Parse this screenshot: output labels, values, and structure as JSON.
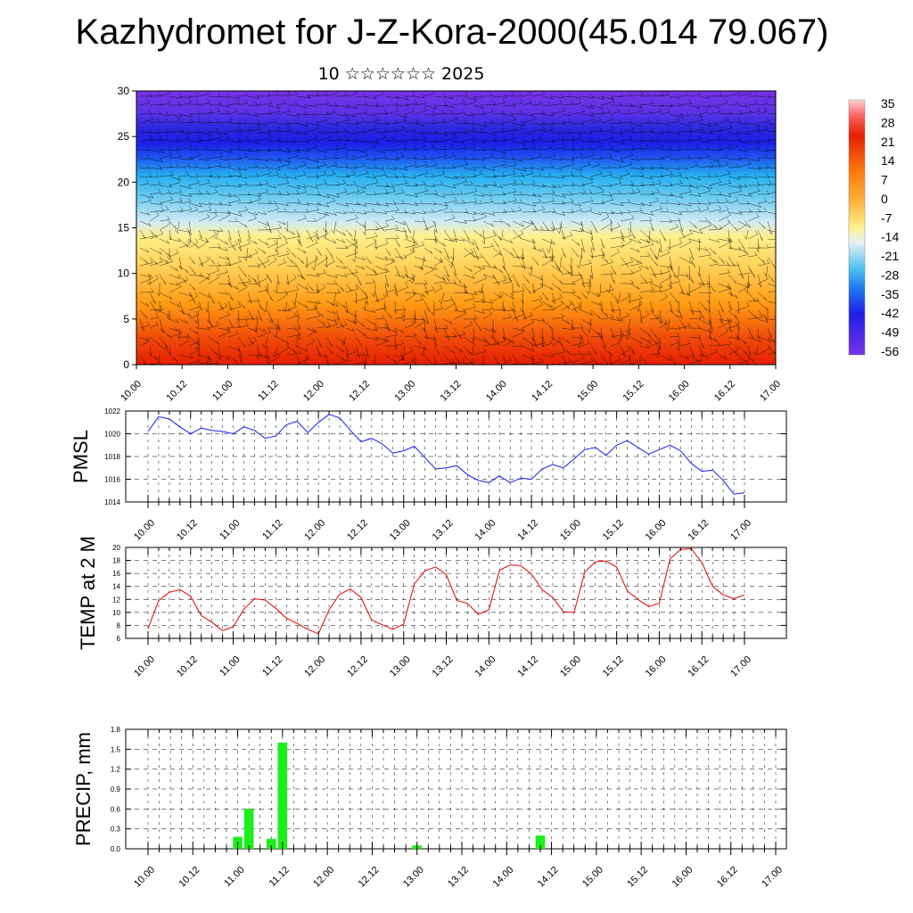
{
  "title": "Kazhydromet for J-Z-Kora-2000(45.014 79.067)",
  "subtitle": "10 ☆☆☆☆☆☆ 2025",
  "time_labels": [
    "10.00",
    "10.12",
    "11.00",
    "11.12",
    "12.00",
    "12.12",
    "13.00",
    "13.12",
    "14.00",
    "14.12",
    "15.00",
    "15.12",
    "16.00",
    "16.12",
    "17.00"
  ],
  "chart_data": [
    {
      "type": "heatmap",
      "description_free": true,
      "x_categories": [
        "10.00",
        "10.12",
        "11.00",
        "11.12",
        "12.00",
        "12.12",
        "13.00",
        "13.12",
        "14.00",
        "14.12",
        "15.00",
        "15.12",
        "16.00",
        "16.12",
        "17.00"
      ],
      "ylim": [
        0,
        30
      ],
      "y_ticks": [
        0,
        5,
        10,
        15,
        20,
        25,
        30
      ],
      "colorbar_labels": [
        "35",
        "28",
        "21",
        "14",
        "7",
        "0",
        "-7",
        "-14",
        "-21",
        "-28",
        "-35",
        "-42",
        "-49",
        "-56"
      ],
      "colorbar_values": [
        35,
        28,
        21,
        14,
        7,
        0,
        -7,
        -14,
        -21,
        -28,
        -35,
        -42,
        -49,
        -56
      ],
      "colors": {
        "warm": "#e61e00",
        "orange": "#ff9a14",
        "yellow": "#fff08c",
        "pale": "#d2ebf5",
        "cyan": "#28aff0",
        "blue": "#1e1ee6",
        "violet": "#7832e6"
      }
    },
    {
      "type": "line",
      "ylabel": "PMSL",
      "ylim": [
        1014,
        1022
      ],
      "y_ticks": [
        1014,
        1016,
        1018,
        1020,
        1022
      ],
      "color": "#1a1aff",
      "values": [
        1020.2,
        1021.5,
        1021.3,
        1020.6,
        1020.0,
        1020.5,
        1020.3,
        1020.2,
        1020.0,
        1020.6,
        1020.3,
        1019.6,
        1019.8,
        1020.8,
        1021.1,
        1020.1,
        1021.0,
        1021.7,
        1021.4,
        1020.3,
        1019.3,
        1019.6,
        1019.1,
        1018.3,
        1018.5,
        1018.9,
        1017.9,
        1016.9,
        1017.0,
        1017.2,
        1016.4,
        1015.9,
        1015.7,
        1016.3,
        1015.7,
        1016.1,
        1016.0,
        1016.9,
        1017.3,
        1017.0,
        1017.8,
        1018.6,
        1018.8,
        1018.1,
        1019.0,
        1019.4,
        1018.8,
        1018.2,
        1018.6,
        1019.0,
        1018.5,
        1017.4,
        1016.7,
        1016.8,
        1015.9,
        1014.7,
        1014.8
      ]
    },
    {
      "type": "line",
      "ylabel": "TEMP at 2 M",
      "ylim": [
        6,
        20
      ],
      "y_ticks": [
        6,
        8,
        10,
        12,
        14,
        16,
        18,
        20
      ],
      "color": "#e60000",
      "values": [
        7.5,
        11.8,
        13.1,
        13.5,
        12.5,
        9.5,
        8.5,
        7.2,
        7.8,
        10.5,
        12.1,
        11.9,
        10.6,
        9.1,
        8.3,
        7.4,
        6.7,
        10.4,
        12.8,
        13.6,
        12.3,
        8.8,
        8.1,
        7.4,
        8.2,
        14.4,
        16.4,
        17.0,
        15.8,
        11.8,
        11.4,
        9.7,
        10.4,
        16.5,
        17.3,
        17.2,
        15.9,
        13.5,
        12.3,
        10.1,
        10.0,
        16.2,
        17.8,
        17.9,
        17.0,
        13.3,
        12.0,
        10.9,
        11.4,
        18.2,
        19.7,
        19.8,
        17.7,
        14.0,
        12.7,
        12.1,
        12.7
      ]
    },
    {
      "type": "bar",
      "ylabel": "PRECIP, mm",
      "ylim": [
        0,
        1.8
      ],
      "y_ticks": [
        "0.0",
        "0.3",
        "0.6",
        "0.9",
        "1.2",
        "1.5",
        "1.8"
      ],
      "color": "#19f019",
      "bars": [
        {
          "time": "11.00",
          "offset_hours": 0,
          "value": 0.18
        },
        {
          "time": "11.03",
          "offset_hours": 3,
          "value": 0.6
        },
        {
          "time": "11.09",
          "offset_hours": 9,
          "value": 0.15
        },
        {
          "time": "11.12",
          "offset_hours": 12,
          "value": 1.6
        },
        {
          "time": "13.12",
          "offset_hours": 0,
          "value": 0.05
        },
        {
          "time": "14.09",
          "offset_hours": 9,
          "value": 0.2
        }
      ]
    }
  ]
}
